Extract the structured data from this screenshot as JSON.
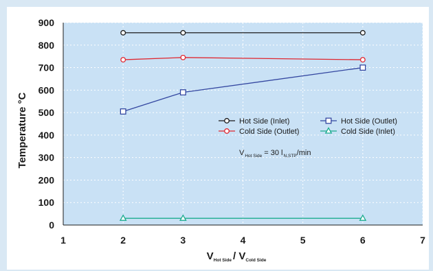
{
  "chart_data": {
    "type": "line",
    "ylabel": "Temperature °C",
    "xlabel": {
      "main1": "V",
      "sub1": "Hot Side",
      "sep": "/ V",
      "sub2": "Cold Side"
    },
    "xlim": [
      1,
      7
    ],
    "ylim": [
      0,
      900
    ],
    "xticks": [
      "1",
      "2",
      "3",
      "4",
      "5",
      "6",
      "7"
    ],
    "yticks": [
      "0",
      "100",
      "200",
      "300",
      "400",
      "500",
      "600",
      "700",
      "800",
      "900"
    ],
    "grid": true,
    "legend_position": "center-right",
    "annotation": {
      "v": "V",
      "sub1": "Hot Side",
      "eq": "= 30 l",
      "sub2": "N,STP",
      "unit": "/min"
    },
    "series": [
      {
        "name": "Hot Side (Inlet)",
        "color": "#1a1a1a",
        "marker": "circle",
        "x": [
          2,
          3,
          6
        ],
        "y": [
          855,
          855,
          855
        ]
      },
      {
        "name": "Cold Side (Outlet)",
        "color": "#e0262f",
        "marker": "circle",
        "x": [
          2,
          3,
          6
        ],
        "y": [
          735,
          745,
          735
        ]
      },
      {
        "name": "Hot Side (Outlet)",
        "color": "#3346a0",
        "marker": "square",
        "x": [
          2,
          3,
          6
        ],
        "y": [
          505,
          590,
          700
        ]
      },
      {
        "name": "Cold Side (Inlet)",
        "color": "#1aab8e",
        "marker": "triangle",
        "x": [
          2,
          3,
          6
        ],
        "y": [
          30,
          30,
          30
        ]
      }
    ]
  }
}
